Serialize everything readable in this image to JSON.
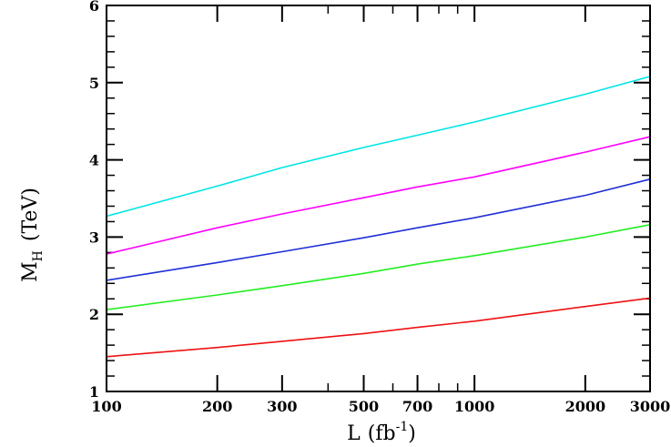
{
  "chart_data": {
    "type": "line",
    "xscale": "log",
    "xlim": [
      100,
      3000
    ],
    "ylim": [
      1,
      6
    ],
    "xticks": [
      100,
      200,
      300,
      500,
      700,
      1000,
      2000,
      3000
    ],
    "xtick_labels": [
      "100",
      "200",
      "300",
      "500",
      "700",
      "1000",
      "2000",
      "3000"
    ],
    "yticks": [
      1,
      2,
      3,
      4,
      5,
      6
    ],
    "ytick_labels": [
      "1",
      "2",
      "3",
      "4",
      "5",
      "6"
    ],
    "xlabel_main": "L",
    "xlabel_unit_open": "(fb",
    "xlabel_unit_sup": "-1",
    "xlabel_unit_close": ")",
    "ylabel_main": "M",
    "ylabel_sub": "H",
    "ylabel_unit": "(TeV)",
    "grid": false,
    "series": [
      {
        "color": "#00e5e5",
        "x": [
          100,
          200,
          300,
          500,
          700,
          1000,
          2000,
          3000
        ],
        "y": [
          3.27,
          3.66,
          3.9,
          4.16,
          4.32,
          4.49,
          4.85,
          5.08
        ]
      },
      {
        "color": "#ff00ff",
        "x": [
          100,
          200,
          300,
          500,
          700,
          1000,
          2000,
          3000
        ],
        "y": [
          2.78,
          3.12,
          3.3,
          3.51,
          3.65,
          3.78,
          4.1,
          4.3
        ]
      },
      {
        "color": "#1f2fd6",
        "x": [
          100,
          200,
          300,
          500,
          700,
          1000,
          2000,
          3000
        ],
        "y": [
          2.44,
          2.67,
          2.81,
          2.99,
          3.12,
          3.25,
          3.54,
          3.75
        ]
      },
      {
        "color": "#22ee22",
        "x": [
          100,
          200,
          300,
          500,
          700,
          1000,
          2000,
          3000
        ],
        "y": [
          2.06,
          2.25,
          2.37,
          2.53,
          2.65,
          2.76,
          3.0,
          3.16
        ]
      },
      {
        "color": "#ee1111",
        "x": [
          100,
          200,
          300,
          500,
          700,
          1000,
          2000,
          3000
        ],
        "y": [
          1.45,
          1.57,
          1.65,
          1.75,
          1.83,
          1.91,
          2.1,
          2.21
        ]
      }
    ]
  }
}
